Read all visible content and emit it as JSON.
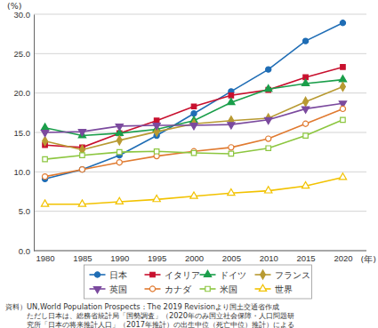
{
  "chart_data": {
    "type": "line",
    "y_label": "(%)",
    "x_label": "(年)",
    "categories": [
      "1980",
      "1985",
      "1990",
      "1995",
      "2000",
      "2005",
      "2010",
      "2015",
      "2020"
    ],
    "ylim": [
      0,
      30
    ],
    "yticks": [
      {
        "value": 0,
        "label": "0.0"
      },
      {
        "value": 5,
        "label": "5.0"
      },
      {
        "value": 10,
        "label": "10.0"
      },
      {
        "value": 15,
        "label": "15.0"
      },
      {
        "value": 20,
        "label": "20.0"
      },
      {
        "value": 25,
        "label": "25.0"
      },
      {
        "value": 30,
        "label": "30.0"
      }
    ],
    "grid": true,
    "legend": "bottom",
    "series": [
      {
        "name": "日本",
        "color": "#1f6db5",
        "marker": "circle",
        "values": [
          9.1,
          10.3,
          12.1,
          14.6,
          17.4,
          20.2,
          23.0,
          26.6,
          28.9
        ]
      },
      {
        "name": "イタリア",
        "color": "#c8102e",
        "marker": "square",
        "values": [
          13.4,
          13.1,
          14.9,
          16.5,
          18.3,
          19.7,
          20.4,
          22.0,
          23.3
        ]
      },
      {
        "name": "ドイツ",
        "color": "#1a9e4a",
        "marker": "triangle",
        "values": [
          15.6,
          14.6,
          14.9,
          15.4,
          16.5,
          18.8,
          20.5,
          21.2,
          21.7
        ]
      },
      {
        "name": "フランス",
        "color": "#b89a32",
        "marker": "diamond",
        "values": [
          13.9,
          12.8,
          14.0,
          15.1,
          16.1,
          16.5,
          16.8,
          18.9,
          20.8
        ]
      },
      {
        "name": "英国",
        "color": "#7b4a9e",
        "marker": "triangle-down",
        "values": [
          15.0,
          15.1,
          15.8,
          15.9,
          15.9,
          16.0,
          16.6,
          18.0,
          18.7
        ]
      },
      {
        "name": "カナダ",
        "color": "#e07a30",
        "marker": "circle-open",
        "values": [
          9.4,
          10.3,
          11.2,
          12.0,
          12.6,
          13.1,
          14.2,
          16.1,
          18.0
        ]
      },
      {
        "name": "米国",
        "color": "#8cc63f",
        "marker": "square-open",
        "values": [
          11.6,
          12.1,
          12.5,
          12.6,
          12.4,
          12.3,
          13.0,
          14.6,
          16.6
        ]
      },
      {
        "name": "世界",
        "color": "#f2c200",
        "marker": "triangle-open",
        "values": [
          5.9,
          5.9,
          6.2,
          6.5,
          6.9,
          7.3,
          7.6,
          8.2,
          9.3
        ]
      }
    ],
    "notes": [
      "資料）UN,World Population Prospects：The 2019 Revisionより国土交通省作成",
      "ただし日本は、総務省統計局「国勢調査」（2020年のみ国立社会保障・人口問題研",
      "究所「日本の将来推計人口」（2017年推計）の出生中位（死亡中位）推計）による"
    ]
  }
}
